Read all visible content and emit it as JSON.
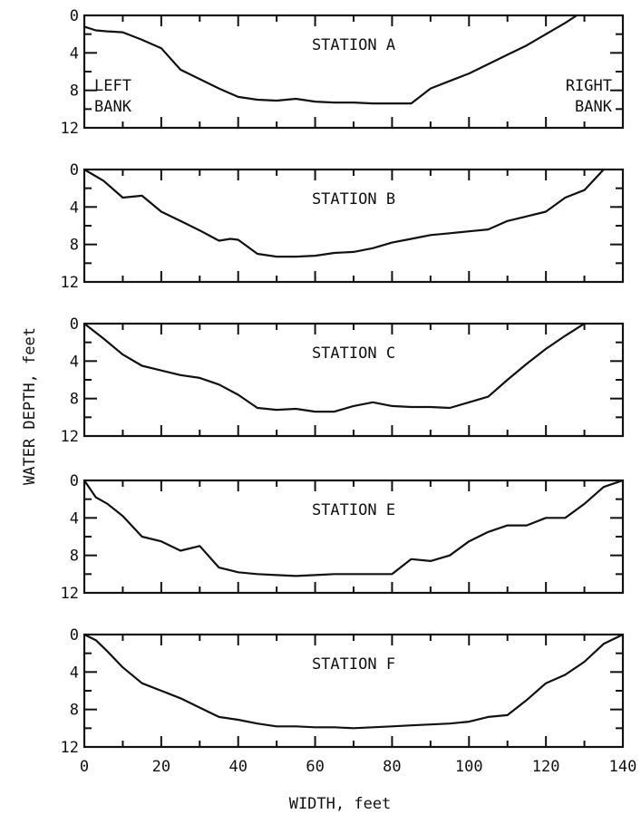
{
  "chart_data": {
    "type": "line",
    "xlabel": "WIDTH, feet",
    "ylabel": "WATER DEPTH, feet",
    "xlim": [
      0,
      140
    ],
    "x_ticks": [
      0,
      20,
      40,
      60,
      80,
      100,
      120,
      140
    ],
    "ylim": [
      0,
      12
    ],
    "y_ticks": [
      0,
      4,
      8,
      12
    ],
    "y_inverted": true,
    "annotations": {
      "left_bank": [
        "LEFT",
        "BANK"
      ],
      "right_bank": [
        "RIGHT",
        "BANK"
      ]
    },
    "panels": [
      {
        "title": "STATION A",
        "x": [
          0,
          3,
          6,
          10,
          15,
          20,
          25,
          30,
          35,
          40,
          45,
          50,
          55,
          60,
          65,
          70,
          75,
          80,
          85,
          90,
          95,
          100,
          105,
          110,
          115,
          120,
          125,
          128
        ],
        "y": [
          1.2,
          1.6,
          1.7,
          1.8,
          2.6,
          3.5,
          5.8,
          6.8,
          7.8,
          8.7,
          9.0,
          9.1,
          8.9,
          9.2,
          9.3,
          9.3,
          9.4,
          9.4,
          9.4,
          7.8,
          7.0,
          6.2,
          5.2,
          4.2,
          3.2,
          2.0,
          0.8,
          0.0
        ]
      },
      {
        "title": "STATION B",
        "x": [
          0,
          5,
          10,
          15,
          20,
          25,
          30,
          35,
          38,
          40,
          45,
          50,
          55,
          60,
          65,
          70,
          75,
          80,
          85,
          90,
          95,
          100,
          105,
          110,
          115,
          120,
          125,
          130,
          135
        ],
        "y": [
          0.0,
          1.2,
          3.0,
          2.8,
          4.5,
          5.5,
          6.5,
          7.6,
          7.4,
          7.5,
          9.0,
          9.3,
          9.3,
          9.2,
          8.9,
          8.8,
          8.4,
          7.8,
          7.4,
          7.0,
          6.8,
          6.6,
          6.4,
          5.5,
          5.0,
          4.5,
          3.0,
          2.2,
          0.0
        ]
      },
      {
        "title": "STATION C",
        "x": [
          0,
          5,
          10,
          15,
          20,
          25,
          30,
          35,
          40,
          45,
          50,
          55,
          60,
          65,
          70,
          75,
          80,
          85,
          90,
          95,
          100,
          105,
          110,
          115,
          120,
          125,
          130
        ],
        "y": [
          0.0,
          1.6,
          3.3,
          4.5,
          5.0,
          5.5,
          5.8,
          6.5,
          7.6,
          9.0,
          9.2,
          9.1,
          9.4,
          9.4,
          8.8,
          8.4,
          8.8,
          8.9,
          8.9,
          9.0,
          8.4,
          7.8,
          6.0,
          4.3,
          2.7,
          1.3,
          0.0
        ]
      },
      {
        "title": "STATION E",
        "x": [
          0,
          3,
          6,
          10,
          15,
          20,
          25,
          30,
          35,
          40,
          45,
          50,
          55,
          60,
          65,
          70,
          75,
          80,
          85,
          90,
          95,
          100,
          105,
          110,
          115,
          120,
          125,
          130,
          135,
          140
        ],
        "y": [
          0.0,
          1.8,
          2.5,
          3.8,
          6.0,
          6.5,
          7.5,
          7.0,
          9.3,
          9.8,
          10.0,
          10.1,
          10.2,
          10.1,
          10.0,
          10.0,
          10.0,
          10.0,
          8.4,
          8.6,
          8.0,
          6.5,
          5.5,
          4.8,
          4.8,
          4.0,
          4.0,
          2.5,
          0.7,
          0.0
        ]
      },
      {
        "title": "STATION F",
        "x": [
          0,
          3,
          6,
          10,
          15,
          20,
          25,
          30,
          35,
          40,
          45,
          50,
          55,
          60,
          65,
          70,
          75,
          80,
          85,
          90,
          95,
          100,
          105,
          110,
          115,
          120,
          125,
          130,
          135,
          140
        ],
        "y": [
          0.0,
          0.6,
          1.8,
          3.5,
          5.2,
          6.0,
          6.8,
          7.8,
          8.8,
          9.1,
          9.5,
          9.8,
          9.8,
          9.9,
          9.9,
          10.0,
          9.9,
          9.8,
          9.7,
          9.6,
          9.5,
          9.3,
          8.8,
          8.6,
          7.0,
          5.2,
          4.3,
          2.9,
          1.0,
          0.0
        ]
      }
    ]
  }
}
